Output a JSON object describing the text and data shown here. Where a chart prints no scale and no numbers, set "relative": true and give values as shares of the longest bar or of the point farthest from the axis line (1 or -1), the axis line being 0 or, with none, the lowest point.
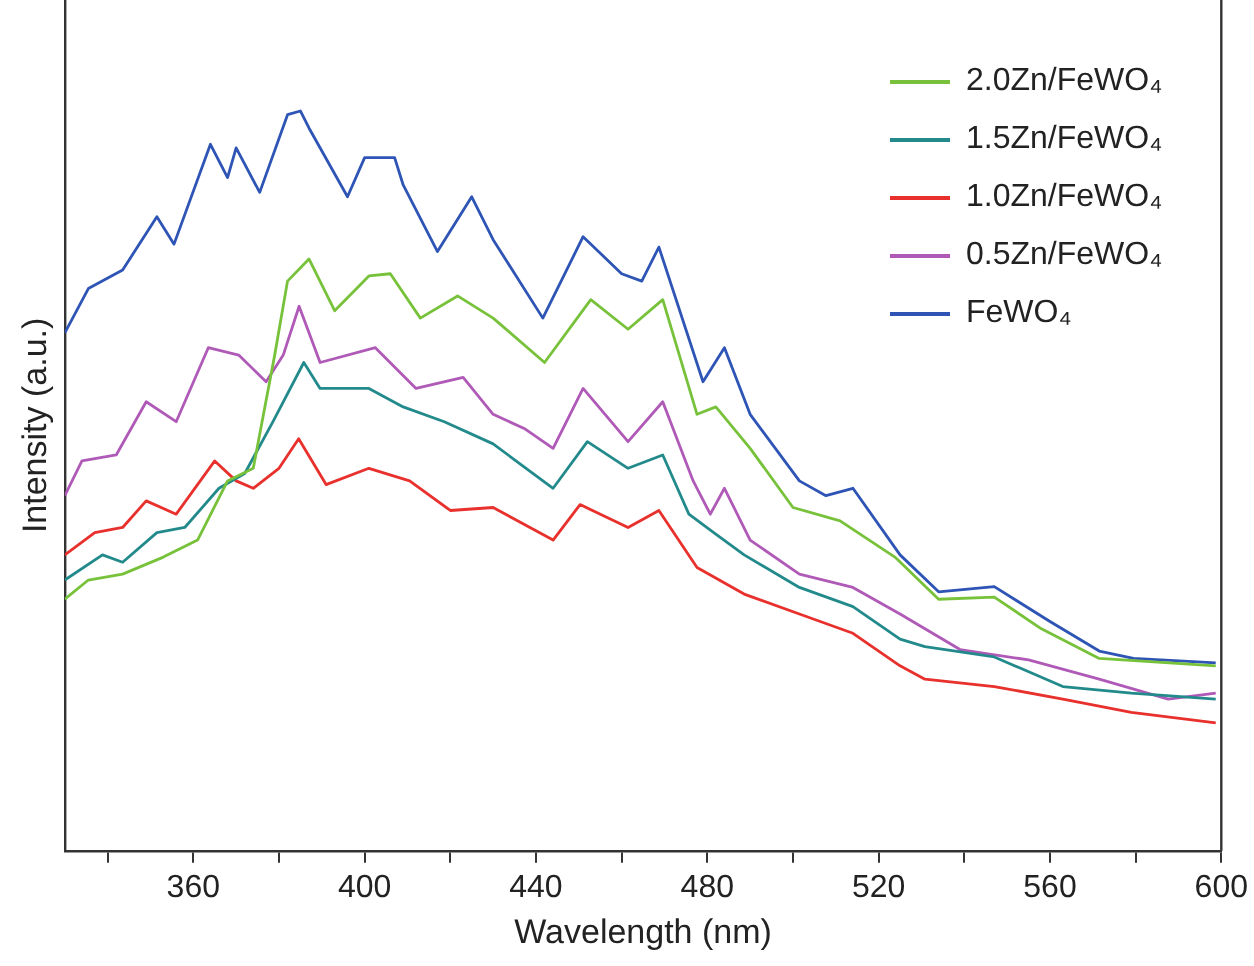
{
  "chart_data": {
    "type": "line",
    "relative": true,
    "xlabel": "Wavelength (nm)",
    "ylabel": "Intensity (a.u.)",
    "xlim": [
      330,
      600
    ],
    "xticks": [
      {
        "value": 340,
        "label": null
      },
      360,
      {
        "value": 380,
        "label": null
      },
      400,
      {
        "value": 420,
        "label": null
      },
      440,
      {
        "value": 460,
        "label": null
      },
      480,
      {
        "value": 500,
        "label": null
      },
      520,
      {
        "value": 540,
        "label": null
      },
      560,
      {
        "value": 580,
        "label": null
      },
      600
    ],
    "legend": "top right",
    "grid": false,
    "marker": "none",
    "series": [
      {
        "name": "2.0Zn/FeWO₄",
        "color": "#77c23a",
        "x": [
          330,
          335.5,
          343.5,
          353,
          361,
          368,
          374,
          379,
          382,
          387,
          393,
          401,
          406,
          413,
          421.7,
          430,
          442,
          452.8,
          461.5,
          469.6,
          477.6,
          482,
          490,
          500,
          511,
          523.8,
          534,
          547,
          558,
          571.5,
          598.7
        ],
        "values": [
          0.34,
          0.366,
          0.374,
          0.397,
          0.42,
          0.5,
          0.517,
          0.67,
          0.77,
          0.8,
          0.73,
          0.777,
          0.78,
          0.72,
          0.75,
          0.72,
          0.66,
          0.745,
          0.705,
          0.745,
          0.59,
          0.6,
          0.544,
          0.464,
          0.446,
          0.397,
          0.34,
          0.343,
          0.3,
          0.26,
          0.25
        ]
      },
      {
        "name": "1.5Zn/FeWO₄",
        "color": "#238a8c",
        "x": [
          330,
          338.8,
          343.5,
          351.5,
          358,
          366,
          372,
          378.6,
          385.8,
          389.6,
          401,
          409,
          418.6,
          430,
          444,
          452,
          461.5,
          469.6,
          475.7,
          481.5,
          488.6,
          501.5,
          514,
          525,
          530.8,
          547,
          563,
          579,
          598.7
        ],
        "values": [
          0.366,
          0.4,
          0.39,
          0.43,
          0.437,
          0.49,
          0.51,
          0.58,
          0.66,
          0.625,
          0.625,
          0.6,
          0.58,
          0.55,
          0.49,
          0.553,
          0.517,
          0.535,
          0.455,
          0.43,
          0.4,
          0.356,
          0.33,
          0.286,
          0.276,
          0.262,
          0.222,
          0.213,
          0.205
        ]
      },
      {
        "name": "1.0Zn/FeWO₄",
        "color": "#e8302c",
        "x": [
          330,
          337,
          343.5,
          349,
          356,
          365,
          370,
          374,
          380,
          384.6,
          391,
          401,
          410.5,
          420,
          430,
          444,
          450.3,
          461.5,
          468.7,
          477.6,
          488.6,
          501.5,
          514,
          525,
          530.8,
          547,
          563,
          579,
          598.7
        ],
        "values": [
          0.4,
          0.43,
          0.437,
          0.473,
          0.455,
          0.527,
          0.5,
          0.49,
          0.517,
          0.557,
          0.495,
          0.517,
          0.5,
          0.46,
          0.464,
          0.42,
          0.468,
          0.437,
          0.46,
          0.383,
          0.347,
          0.32,
          0.294,
          0.25,
          0.232,
          0.222,
          0.205,
          0.187,
          0.173
        ]
      },
      {
        "name": "0.5Zn/FeWO₄",
        "color": "#b05ab8",
        "x": [
          330,
          334,
          342,
          349,
          356,
          363.5,
          370.6,
          377,
          381,
          384.7,
          389.6,
          402.5,
          412,
          423,
          430,
          437.5,
          444,
          451,
          461.5,
          469.6,
          476.7,
          480.7,
          484,
          490,
          501.5,
          514,
          525,
          539,
          555,
          571.5,
          587.6,
          598.7
        ],
        "values": [
          0.48,
          0.527,
          0.535,
          0.607,
          0.58,
          0.68,
          0.67,
          0.634,
          0.67,
          0.736,
          0.66,
          0.68,
          0.625,
          0.64,
          0.59,
          0.57,
          0.544,
          0.625,
          0.553,
          0.607,
          0.5,
          0.455,
          0.49,
          0.42,
          0.374,
          0.356,
          0.32,
          0.272,
          0.258,
          0.232,
          0.205,
          0.213
        ]
      },
      {
        "name": "FeWO₄",
        "color": "#2e55b5",
        "x": [
          330,
          335.5,
          343.5,
          351.5,
          355.5,
          364,
          368,
          370,
          375.5,
          382,
          385,
          387,
          396,
          400,
          407,
          409,
          417,
          425,
          430,
          441.6,
          451,
          460,
          464.7,
          468.7,
          479,
          484,
          490,
          501.5,
          507.7,
          514,
          525,
          534,
          547,
          560,
          571.5,
          579.5,
          598.7
        ],
        "values": [
          0.7,
          0.76,
          0.785,
          0.857,
          0.82,
          0.955,
          0.91,
          0.95,
          0.89,
          0.995,
          1,
          0.977,
          0.884,
          0.937,
          0.937,
          0.9,
          0.81,
          0.884,
          0.826,
          0.72,
          0.83,
          0.78,
          0.77,
          0.816,
          0.634,
          0.68,
          0.59,
          0.5,
          0.48,
          0.49,
          0.4,
          0.35,
          0.357,
          0.31,
          0.27,
          0.26,
          0.254
        ]
      }
    ]
  }
}
